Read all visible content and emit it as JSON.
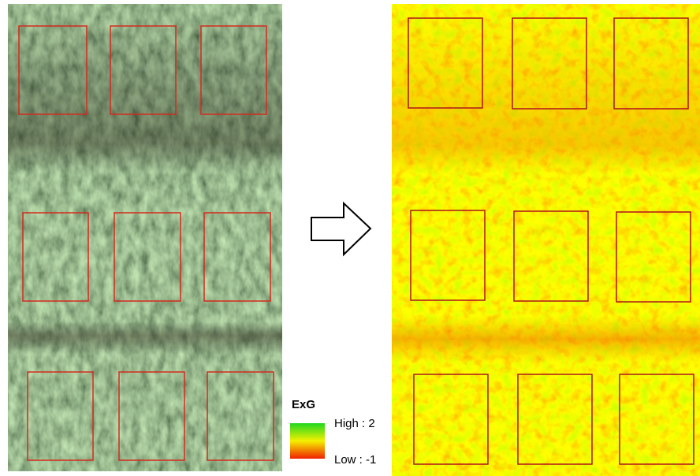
{
  "legend": {
    "title": "ExG",
    "high": "High : 2",
    "low": "Low : -1"
  }
}
